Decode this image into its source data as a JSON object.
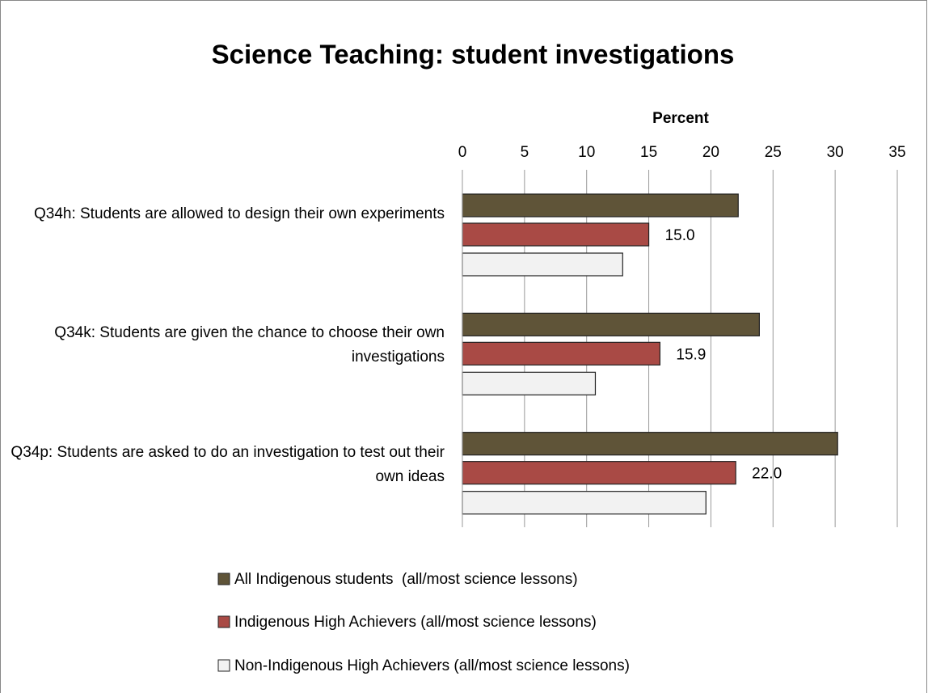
{
  "chart_data": {
    "type": "bar",
    "orientation": "horizontal",
    "title": "Science Teaching: student investigations",
    "x_label": "Percent",
    "categories": [
      "Q34h: Students are allowed to design their own experiments",
      "Q34k: Students are given the chance to choose their own investigations",
      "Q34p: Students are asked to do an investigation to test out their own ideas"
    ],
    "series": [
      {
        "name": "All Indigenous students  (all/most science lessons)",
        "color": "#5f5438",
        "values": [
          22.2,
          23.9,
          30.2
        ]
      },
      {
        "name": "Indigenous High Achievers (all/most science lessons)",
        "color": "#a94a45",
        "values": [
          15.0,
          15.9,
          22.0
        ],
        "value_labels": [
          "15.0",
          "15.9",
          "22.0"
        ]
      },
      {
        "name": "Non-Indigenous High Achievers (all/most science lessons)",
        "color": "#f2f2f2",
        "values": [
          12.9,
          10.7,
          19.6
        ]
      }
    ],
    "xlim": [
      0,
      35
    ],
    "xticks": [
      0,
      5,
      10,
      15,
      20,
      25,
      30,
      35
    ],
    "grid": true,
    "legend": "bottom"
  }
}
